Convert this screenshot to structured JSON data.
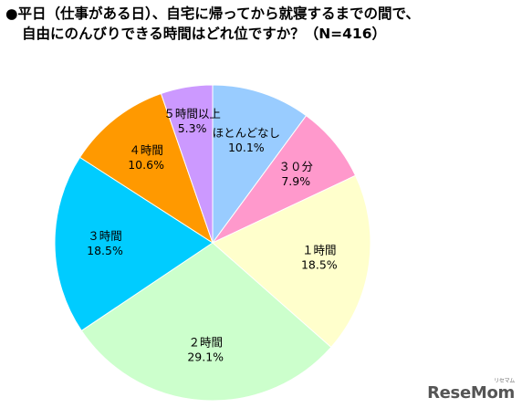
{
  "title": {
    "line1": "●平日（仕事がある日）、自宅に帰ってから就寝するまでの間で、",
    "line2": "自由にのんびりできる時間はどれ位ですか？（N=416）"
  },
  "chart_data": {
    "type": "pie",
    "start_angle_deg": 0,
    "direction": "clockwise",
    "slices": [
      {
        "label": "ほとんどなし",
        "value": 10.1,
        "value_label": "10.1%",
        "color": "#99ccff"
      },
      {
        "label": "３０分",
        "value": 7.9,
        "value_label": "7.9%",
        "color": "#ff99cc"
      },
      {
        "label": "１時間",
        "value": 18.5,
        "value_label": "18.5%",
        "color": "#ffffcc"
      },
      {
        "label": "２時間",
        "value": 29.1,
        "value_label": "29.1%",
        "color": "#ccffcc"
      },
      {
        "label": "３時間",
        "value": 18.5,
        "value_label": "18.5%",
        "color": "#00ccff"
      },
      {
        "label": "４時間",
        "value": 10.6,
        "value_label": "10.6%",
        "color": "#ff9900"
      },
      {
        "label": "５時間以上",
        "value": 5.3,
        "value_label": "5.3%",
        "color": "#cc99ff"
      }
    ]
  },
  "logo": {
    "text": "ReseMom",
    "kana": "リセマム"
  }
}
